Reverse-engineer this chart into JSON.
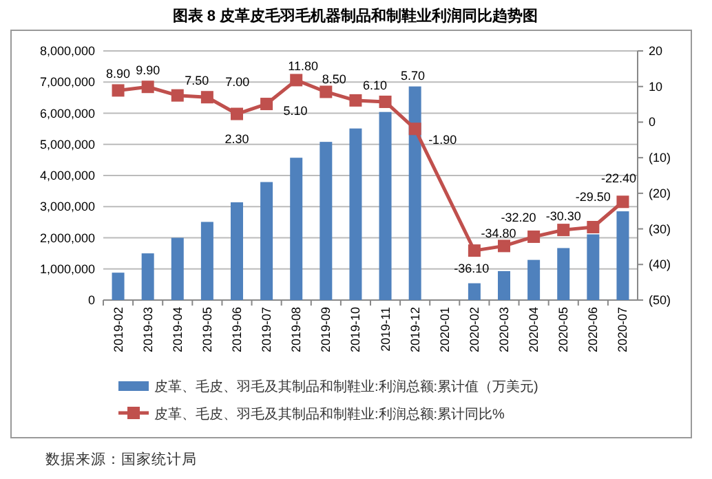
{
  "chart_data": {
    "type": "bar",
    "title": "图表 8 皮革皮毛羽毛机器制品和制鞋业利润同比趋势图",
    "categories": [
      "2019-02",
      "2019-03",
      "2019-04",
      "2019-05",
      "2019-06",
      "2019-07",
      "2019-08",
      "2019-09",
      "2019-10",
      "2019-11",
      "2019-12",
      "2020-01",
      "2020-02",
      "2020-03",
      "2020-04",
      "2020-05",
      "2020-06",
      "2020-07"
    ],
    "series": [
      {
        "name": "皮革、毛皮、羽毛及其制品和制鞋业:利润总额:累计值（万美元)",
        "color": "#4f81bd",
        "values": [
          880000,
          1500000,
          2000000,
          2510000,
          3140000,
          3790000,
          4570000,
          5080000,
          5510000,
          6040000,
          6860000,
          null,
          540000,
          930000,
          1290000,
          1670000,
          2110000,
          2850000
        ]
      },
      {
        "name": "皮革、毛皮、羽毛及其制品和制鞋业:利润总额:累计同比%",
        "type": "line",
        "axis": "y2",
        "color": "#c0504d",
        "marker": "square",
        "values": [
          8.9,
          9.9,
          7.5,
          7.0,
          2.3,
          5.1,
          11.8,
          8.5,
          6.1,
          5.7,
          -1.9,
          null,
          -36.1,
          -34.8,
          -32.2,
          -30.3,
          -29.5,
          -22.4
        ],
        "value_labels": [
          "8.90",
          "9.90",
          "7.50",
          "7.00",
          "2.30",
          "5.10",
          "11.80",
          "8.50",
          "6.10",
          "5.70",
          "-1.90",
          null,
          "-36.10",
          "-34.80",
          "-32.20",
          "-30.30",
          "-29.50",
          "-22.40"
        ]
      }
    ],
    "ylim": [
      0,
      8000000
    ],
    "yticks": [
      {
        "value": 0,
        "label": "0"
      },
      {
        "value": 1000000,
        "label": "1,000,000"
      },
      {
        "value": 2000000,
        "label": "2,000,000"
      },
      {
        "value": 3000000,
        "label": "3,000,000"
      },
      {
        "value": 4000000,
        "label": "4,000,000"
      },
      {
        "value": 5000000,
        "label": "5,000,000"
      },
      {
        "value": 6000000,
        "label": "6,000,000"
      },
      {
        "value": 7000000,
        "label": "7,000,000"
      },
      {
        "value": 8000000,
        "label": "8,000,000"
      }
    ],
    "y2lim": [
      -50,
      20
    ],
    "y2ticks": [
      20,
      10,
      0,
      {
        "value": -10,
        "label": "(10)"
      },
      {
        "value": -20,
        "label": "(20)"
      },
      {
        "value": -30,
        "label": "(30)"
      },
      {
        "value": -40,
        "label": "(40)"
      },
      {
        "value": -50,
        "label": "(50)"
      }
    ],
    "grid": "y",
    "legend": "bottom",
    "annotations": [
      "数据来源：国家统计局"
    ]
  }
}
